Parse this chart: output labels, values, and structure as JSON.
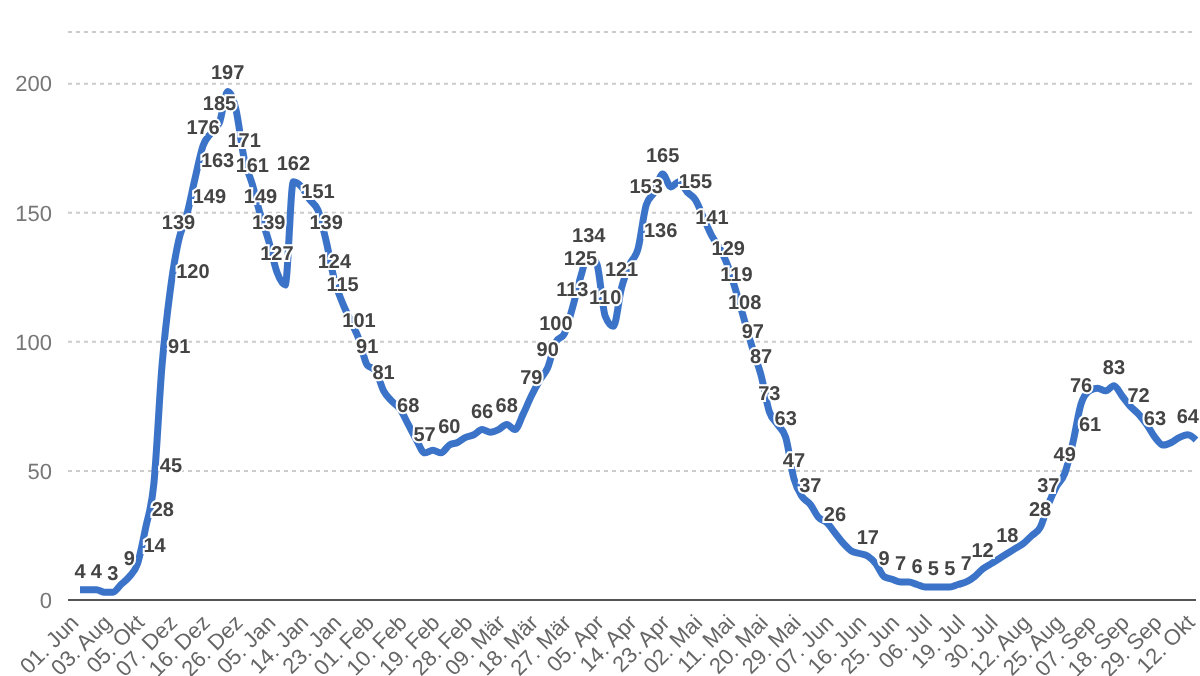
{
  "chart_data": {
    "type": "line",
    "categories": [
      "01. Jun",
      null,
      null,
      null,
      "03. Aug",
      null,
      null,
      null,
      "05. Okt",
      null,
      null,
      null,
      "07. Dez",
      null,
      null,
      null,
      "16. Dez",
      null,
      null,
      null,
      "26. Dez",
      null,
      null,
      null,
      "05. Jan",
      null,
      null,
      null,
      "14. Jan",
      null,
      null,
      null,
      "23. Jan",
      null,
      null,
      null,
      "01. Feb",
      null,
      null,
      null,
      "10. Feb",
      null,
      null,
      null,
      "19. Feb",
      null,
      null,
      null,
      "28. Feb",
      null,
      null,
      null,
      "09. Mär",
      null,
      null,
      null,
      "18. Mär",
      null,
      null,
      null,
      "27. Mär",
      null,
      null,
      null,
      "05. Apr",
      null,
      null,
      null,
      "14. Apr",
      null,
      null,
      null,
      "23. Apr",
      null,
      null,
      null,
      "02. Mai",
      null,
      null,
      null,
      "11. Mai",
      null,
      null,
      null,
      "20. Mai",
      null,
      null,
      null,
      "29. Mai",
      null,
      null,
      null,
      "07. Jun",
      null,
      null,
      null,
      "16. Jun",
      null,
      null,
      null,
      "25. Jun",
      null,
      null,
      null,
      "06. Jul",
      null,
      null,
      null,
      "19. Jul",
      null,
      null,
      null,
      "30. Jul",
      null,
      null,
      null,
      "12. Aug",
      null,
      null,
      null,
      "25. Aug",
      null,
      null,
      null,
      "07. Sep",
      null,
      null,
      null,
      "18. Sep",
      null,
      null,
      null,
      "29. Sep",
      null,
      null,
      null,
      "12. Okt"
    ],
    "series": [
      {
        "color": "#3a73c8",
        "values": [
          4,
          4,
          4,
          3,
          3,
          6,
          9,
          14,
          28,
          45,
          91,
          120,
          139,
          149,
          163,
          176,
          181,
          185,
          197,
          190,
          171,
          161,
          149,
          139,
          127,
          122,
          162,
          160,
          155,
          151,
          139,
          124,
          115,
          108,
          101,
          91,
          89,
          81,
          77,
          74,
          68,
          62,
          57,
          58,
          57,
          60,
          61,
          63,
          64,
          66,
          65,
          66,
          68,
          66,
          72,
          79,
          85,
          90,
          100,
          103,
          113,
          125,
          134,
          130,
          110,
          106,
          121,
          130,
          136,
          153,
          158,
          165,
          160,
          162,
          158,
          155,
          148,
          141,
          136,
          129,
          119,
          108,
          97,
          87,
          73,
          68,
          63,
          47,
          40,
          37,
          32,
          30,
          26,
          22,
          19,
          18,
          17,
          14,
          9,
          8,
          7,
          7,
          6,
          5,
          5,
          5,
          5,
          6,
          7,
          9,
          12,
          14,
          16,
          18,
          20,
          22,
          25,
          28,
          37,
          44,
          49,
          61,
          76,
          81,
          82,
          81,
          83,
          79,
          75,
          72,
          68,
          63,
          60,
          61,
          63,
          64,
          62
        ],
        "value_labels": [
          "4",
          null,
          "4",
          null,
          "3",
          null,
          "9",
          "14",
          "28",
          "45",
          "91",
          "120",
          "139",
          "149",
          "163",
          "176",
          null,
          "185",
          "197",
          null,
          "171",
          "161",
          "149",
          "139",
          "127",
          null,
          "162",
          null,
          null,
          "151",
          "139",
          "124",
          "115",
          null,
          "101",
          "91",
          null,
          "81",
          null,
          null,
          "68",
          null,
          "57",
          null,
          null,
          "60",
          null,
          null,
          null,
          "66",
          null,
          null,
          "68",
          null,
          null,
          "79",
          null,
          "90",
          "100",
          null,
          "113",
          "125",
          "134",
          null,
          "110",
          null,
          "121",
          null,
          "136",
          "153",
          null,
          "165",
          null,
          null,
          null,
          "155",
          null,
          "141",
          null,
          "129",
          "119",
          "108",
          "97",
          "87",
          "73",
          null,
          "63",
          "47",
          null,
          "37",
          null,
          null,
          "26",
          null,
          null,
          null,
          "17",
          null,
          "9",
          null,
          "7",
          null,
          "6",
          null,
          "5",
          null,
          "5",
          null,
          "7",
          null,
          "12",
          null,
          null,
          "18",
          null,
          null,
          null,
          "28",
          "37",
          null,
          "49",
          "61",
          "76",
          null,
          null,
          null,
          "83",
          null,
          null,
          "72",
          null,
          "63",
          null,
          null,
          null,
          "64",
          null
        ]
      }
    ],
    "ylim": [
      0,
      220
    ],
    "yticks": [
      0,
      50,
      100,
      150,
      200
    ],
    "grid": "y",
    "legend": false,
    "marker": "none",
    "line_style": "solid"
  }
}
